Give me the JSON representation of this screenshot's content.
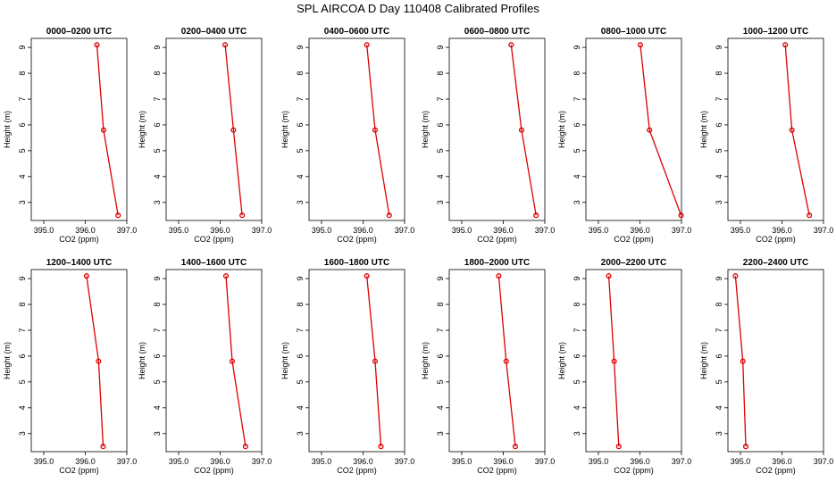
{
  "title": "SPL AIRCOA D  Day 110408  Calibrated Profiles",
  "colors": {
    "series": "#dd0000",
    "axis": "#000000"
  },
  "chart_data": {
    "type": "line",
    "layout": "grid-2x6",
    "xlabel": "CO2 (ppm)",
    "ylabel": "Height (m)",
    "xlim": [
      394.7,
      397.0
    ],
    "ylim": [
      2.3,
      9.35
    ],
    "xticks": [
      395.0,
      396.0,
      397.0
    ],
    "xtick_labels": [
      "395.0",
      "396.0",
      "397.0"
    ],
    "yticks": [
      3,
      4,
      5,
      6,
      7,
      8,
      9
    ],
    "ytick_labels": [
      "3",
      "4",
      "5",
      "6",
      "7",
      "8",
      "9"
    ],
    "heights": [
      9.1,
      5.8,
      2.5
    ],
    "grid": false,
    "panels": [
      {
        "title": "0000–0200 UTC",
        "co2": [
          396.28,
          396.44,
          396.79
        ]
      },
      {
        "title": "0200–0400 UTC",
        "co2": [
          396.12,
          396.32,
          396.53
        ]
      },
      {
        "title": "0400–0600 UTC",
        "co2": [
          396.09,
          396.29,
          396.63
        ]
      },
      {
        "title": "0600–0800 UTC",
        "co2": [
          396.19,
          396.44,
          396.79
        ]
      },
      {
        "title": "0800–1000 UTC",
        "co2": [
          396.01,
          396.23,
          396.99
        ]
      },
      {
        "title": "1000–1200 UTC",
        "co2": [
          396.08,
          396.24,
          396.66
        ]
      },
      {
        "title": "1200–1400 UTC",
        "co2": [
          396.03,
          396.32,
          396.43
        ]
      },
      {
        "title": "1400–1600 UTC",
        "co2": [
          396.14,
          396.29,
          396.61
        ]
      },
      {
        "title": "1600–1800 UTC",
        "co2": [
          396.09,
          396.29,
          396.43
        ]
      },
      {
        "title": "1800–2000 UTC",
        "co2": [
          395.89,
          396.07,
          396.29
        ]
      },
      {
        "title": "2000–2200 UTC",
        "co2": [
          395.25,
          395.38,
          395.49
        ]
      },
      {
        "title": "2200–2400 UTC",
        "co2": [
          394.88,
          395.06,
          395.13
        ]
      }
    ]
  }
}
